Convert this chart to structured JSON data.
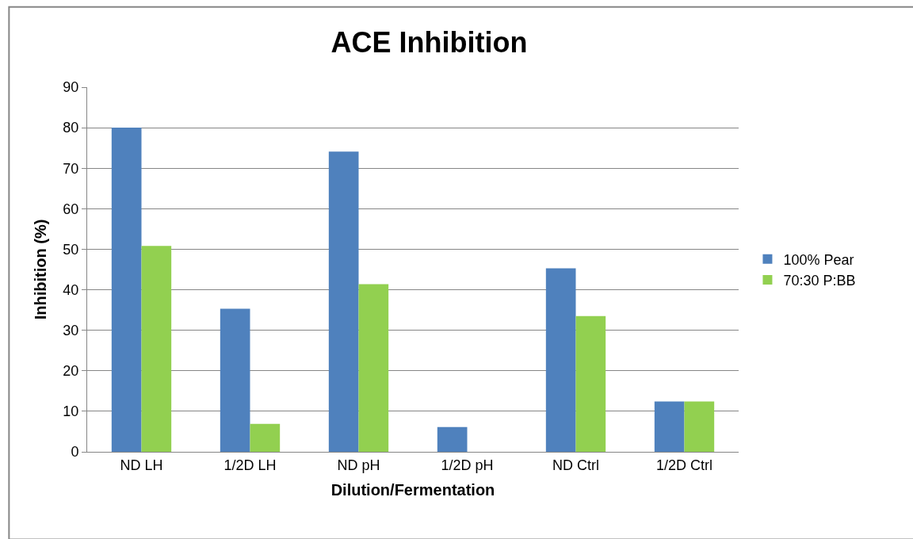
{
  "chart_data": {
    "type": "bar",
    "title": "ACE Inhibition",
    "xlabel": "Dilution/Fermentation",
    "ylabel": "Inhibition (%)",
    "categories": [
      "ND LH",
      "1/2D LH",
      "ND pH",
      "1/2D pH",
      "ND Ctrl",
      "1/2D Ctrl"
    ],
    "series": [
      {
        "name": "100% Pear",
        "color": "#4f81bd",
        "values": [
          80.0,
          35.3,
          74.1,
          6.1,
          45.3,
          12.4
        ]
      },
      {
        "name": "70:30 P:BB",
        "color": "#92d050",
        "values": [
          50.8,
          6.9,
          41.4,
          0,
          33.5,
          12.4
        ]
      }
    ],
    "ylim": [
      0,
      90
    ],
    "yticks": [
      0,
      10,
      20,
      30,
      40,
      50,
      60,
      70,
      80,
      90
    ],
    "grid": "y",
    "legend": "right"
  }
}
